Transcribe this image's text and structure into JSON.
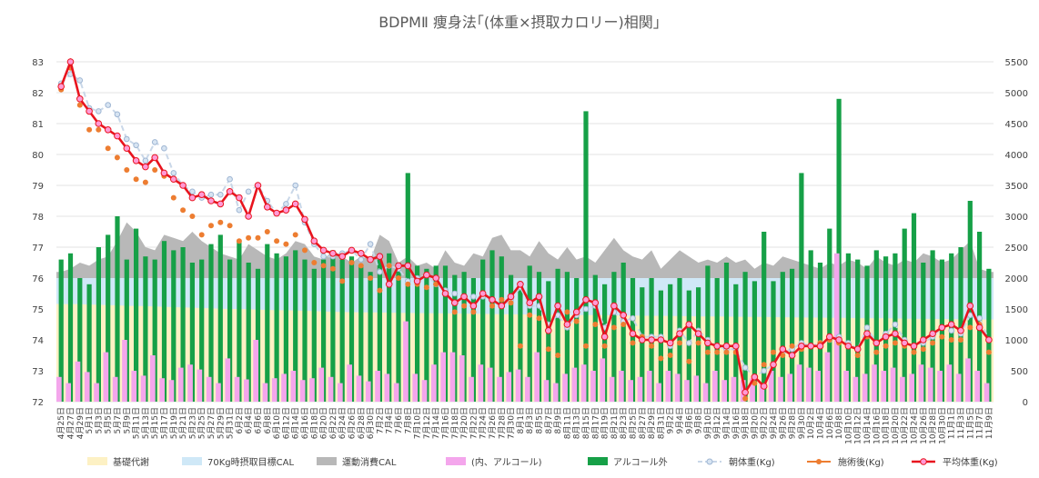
{
  "chart_data": {
    "type": "combo",
    "title": "BDPMⅡ 痩身法｢(体重×摂取カロリー)相関｣",
    "left_axis": {
      "min": 72,
      "max": 83,
      "ticks": [
        "83",
        "82",
        "81",
        "80",
        "79",
        "78",
        "77",
        "76",
        "75",
        "74",
        "73",
        "72"
      ]
    },
    "right_axis": {
      "min": 0,
      "max": 5500,
      "ticks": [
        "5500",
        "5000",
        "4500",
        "4000",
        "3500",
        "3000",
        "2500",
        "2000",
        "1500",
        "1000",
        "500",
        "0"
      ]
    },
    "x_dates": [
      "4月25日",
      "4月27日",
      "4月29日",
      "5月1日",
      "5月3日",
      "5月5日",
      "5月7日",
      "5月9日",
      "5月11日",
      "5月13日",
      "5月15日",
      "5月17日",
      "5月19日",
      "5月21日",
      "5月23日",
      "5月25日",
      "5月27日",
      "5月29日",
      "5月31日",
      "6月2日",
      "6月4日",
      "6月6日",
      "6月8日",
      "6月10日",
      "6月12日",
      "6月14日",
      "6月16日",
      "6月18日",
      "6月20日",
      "6月22日",
      "6月24日",
      "6月26日",
      "6月28日",
      "6月30日",
      "7月2日",
      "7月4日",
      "7月6日",
      "7月8日",
      "7月10日",
      "7月12日",
      "7月14日",
      "7月16日",
      "7月18日",
      "7月20日",
      "7月22日",
      "7月24日",
      "7月26日",
      "7月28日",
      "7月30日",
      "8月1日",
      "8月3日",
      "8月5日",
      "8月7日",
      "8月9日",
      "8月11日",
      "8月13日",
      "8月15日",
      "8月17日",
      "8月19日",
      "8月21日",
      "8月23日",
      "8月25日",
      "8月27日",
      "8月29日",
      "8月31日",
      "9月2日",
      "9月4日",
      "9月6日",
      "9月8日",
      "9月10日",
      "9月12日",
      "9月14日",
      "9月16日",
      "9月18日",
      "9月20日",
      "9月22日",
      "9月24日",
      "9月26日",
      "9月28日",
      "9月30日",
      "10月2日",
      "10月4日",
      "10月6日",
      "10月8日",
      "10月10日",
      "10月12日",
      "10月14日",
      "10月16日",
      "10月18日",
      "10月20日",
      "10月22日",
      "10月24日",
      "10月26日",
      "10月28日",
      "10月30日",
      "11月1日",
      "11月3日",
      "11月5日",
      "11月7日",
      "11月9日"
    ],
    "legend": [
      {
        "label": "基礎代謝",
        "color": "#fdf1c4",
        "kind": "area"
      },
      {
        "label": "70Kg時摂取目標CAL",
        "color": "#cfe8f7",
        "kind": "area"
      },
      {
        "label": "運動消費CAL",
        "color": "#b8b8b8",
        "kind": "area"
      },
      {
        "label": "(内、アルコール)",
        "color": "#f4a6ec",
        "kind": "bar"
      },
      {
        "label": "アルコール外",
        "color": "#16a047",
        "kind": "bar"
      },
      {
        "label": "朝体重(Kg)",
        "color": "#c9d7e8",
        "kind": "dash-line"
      },
      {
        "label": "施術後(Kg)",
        "color": "#ed7d31",
        "kind": "line-dot"
      },
      {
        "label": "平均体重(Kg)",
        "color": "#e8141e",
        "kind": "line-marker"
      }
    ],
    "series": [
      {
        "name": "基礎代謝",
        "axis": "right",
        "values": [
          1580,
          1580,
          1580,
          1570,
          1570,
          1560,
          1560,
          1550,
          1550,
          1545,
          1540,
          1535,
          1530,
          1525,
          1520,
          1515,
          1510,
          1505,
          1500,
          1500,
          1495,
          1490,
          1485,
          1480,
          1480,
          1475,
          1470,
          1465,
          1460,
          1455,
          1450,
          1448,
          1446,
          1444,
          1442,
          1440,
          1438,
          1436,
          1434,
          1432,
          1430,
          1428,
          1426,
          1424,
          1422,
          1420,
          1418,
          1416,
          1414,
          1412,
          1410,
          1408,
          1406,
          1404,
          1402,
          1400,
          1400,
          1400,
          1398,
          1396,
          1394,
          1392,
          1390,
          1390,
          1388,
          1386,
          1384,
          1382,
          1380,
          1380,
          1378,
          1376,
          1374,
          1372,
          1370,
          1370,
          1368,
          1366,
          1364,
          1362,
          1360,
          1360,
          1358,
          1356,
          1354,
          1352,
          1350,
          1350,
          1348,
          1346,
          1344,
          1342,
          1340,
          1340,
          1338,
          1336,
          1334,
          1332,
          1330,
          1330
        ]
      },
      {
        "name": "70Kg時摂取目標CAL",
        "axis": "right",
        "values": [
          2000,
          2000,
          2000,
          2000,
          2000,
          2000,
          2000,
          2000,
          2000,
          2000,
          2000,
          2000,
          2000,
          2000,
          2000,
          2000,
          2000,
          2000,
          2000,
          2000,
          2000,
          2000,
          2000,
          2000,
          2000,
          2000,
          2000,
          2000,
          2000,
          2000,
          2000,
          2000,
          2000,
          2000,
          2000,
          2000,
          2000,
          2000,
          2000,
          2000,
          2000,
          2000,
          2000,
          2000,
          2000,
          2000,
          2000,
          2000,
          2000,
          2000,
          2000,
          2000,
          2000,
          2000,
          2000,
          2000,
          2000,
          2000,
          2000,
          2000,
          2000,
          2000,
          2000,
          2000,
          2000,
          2000,
          2000,
          2000,
          2000,
          2000,
          2000,
          2000,
          2000,
          2000,
          2000,
          2000,
          2000,
          2000,
          2000,
          2000,
          2000,
          2000,
          2000,
          2000,
          2000,
          2000,
          2000,
          2000,
          2000,
          2000,
          2000,
          2000,
          2000,
          2000,
          2000,
          2000,
          2000,
          2000,
          2000,
          2000
        ]
      },
      {
        "name": "運動消費CAL",
        "axis": "right",
        "values": [
          2100,
          2150,
          2250,
          2200,
          2300,
          2350,
          2600,
          2900,
          2750,
          2500,
          2450,
          2700,
          2650,
          2600,
          2750,
          2600,
          2500,
          2400,
          2350,
          2300,
          2550,
          2450,
          2350,
          2300,
          2400,
          2600,
          2550,
          2350,
          2300,
          2450,
          2350,
          2250,
          2350,
          2300,
          2700,
          2600,
          2250,
          2350,
          2200,
          2250,
          2150,
          2450,
          2250,
          2200,
          2400,
          2350,
          2650,
          2700,
          2450,
          2450,
          2350,
          2600,
          2400,
          2300,
          2500,
          2300,
          2350,
          2250,
          2450,
          2650,
          2450,
          2350,
          2300,
          2450,
          2150,
          2300,
          2450,
          2350,
          2250,
          2300,
          2250,
          2350,
          2250,
          2300,
          2150,
          2250,
          2200,
          2350,
          2300,
          2250,
          2200,
          2150,
          2250,
          2200,
          2300,
          2250,
          2150,
          2350,
          2250,
          2200,
          2300,
          2250,
          2400,
          2350,
          2250,
          2300,
          2450,
          2600,
          2150,
          2100
        ]
      },
      {
        "name": "アルコール外",
        "axis": "right",
        "values": [
          2300,
          2400,
          2000,
          1900,
          2500,
          2700,
          3000,
          2300,
          2800,
          2350,
          2300,
          2600,
          2450,
          2500,
          2250,
          2300,
          2550,
          2700,
          2300,
          2600,
          2250,
          2150,
          2550,
          2400,
          2350,
          2450,
          2300,
          2150,
          2300,
          2450,
          2300,
          2350,
          2200,
          2100,
          2300,
          2400,
          2250,
          3700,
          2200,
          2150,
          2200,
          2200,
          2050,
          2100,
          2000,
          2300,
          2450,
          2350,
          2050,
          1900,
          2200,
          2100,
          1950,
          2150,
          2100,
          2000,
          4700,
          2050,
          1900,
          2100,
          2250,
          2000,
          1850,
          2000,
          1800,
          1900,
          2000,
          1800,
          1850,
          2200,
          2000,
          2250,
          1900,
          2100,
          1950,
          2750,
          1950,
          2100,
          2150,
          3700,
          2450,
          2250,
          2800,
          4900,
          2400,
          2300,
          2200,
          2450,
          2350,
          2400,
          2800,
          3050,
          2250,
          2450,
          2300,
          2400,
          2500,
          3250,
          2750,
          2150
        ]
      },
      {
        "name": "(内、アルコール)",
        "axis": "right",
        "values": [
          400,
          300,
          650,
          480,
          300,
          800,
          400,
          1000,
          500,
          420,
          750,
          380,
          350,
          550,
          600,
          520,
          400,
          300,
          700,
          400,
          360,
          1000,
          300,
          380,
          450,
          500,
          350,
          380,
          550,
          400,
          300,
          600,
          420,
          330,
          500,
          450,
          300,
          1300,
          450,
          350,
          600,
          800,
          800,
          750,
          400,
          600,
          550,
          400,
          480,
          520,
          400,
          800,
          350,
          300,
          450,
          550,
          600,
          500,
          700,
          400,
          500,
          350,
          400,
          500,
          300,
          500,
          450,
          350,
          420,
          300,
          500,
          350,
          400,
          350,
          380,
          300,
          500,
          400,
          450,
          600,
          550,
          500,
          800,
          2400,
          500,
          400,
          450,
          600,
          500,
          550,
          400,
          450,
          600,
          550,
          500,
          600,
          450,
          700,
          500,
          300
        ]
      },
      {
        "name": "朝体重(Kg)",
        "axis": "left",
        "values": [
          82.3,
          82.6,
          82.4,
          81.5,
          81.4,
          81.6,
          81.3,
          80.5,
          80.3,
          79.8,
          80.4,
          80.2,
          79.4,
          79.0,
          78.8,
          78.6,
          78.7,
          78.7,
          79.2,
          78.2,
          78.8,
          79.0,
          78.5,
          78.1,
          78.4,
          79.0,
          77.8,
          77.1,
          76.7,
          76.7,
          76.8,
          76.9,
          76.6,
          77.1,
          76.2,
          76.4,
          76.3,
          75.9,
          76.0,
          76.1,
          75.8,
          75.6,
          75.5,
          75.4,
          75.4,
          75.4,
          75.3,
          75.1,
          75.3,
          75.7,
          75.1,
          75.1,
          74.5,
          74.8,
          74.4,
          74.8,
          75.0,
          75.1,
          74.4,
          74.9,
          74.6,
          74.7,
          74.1,
          74.1,
          74.1,
          73.8,
          74.3,
          73.9,
          74.3,
          74.0,
          73.8,
          73.7,
          73.7,
          73.1,
          72.8,
          73.0,
          73.2,
          73.6,
          73.7,
          73.9,
          73.8,
          73.9,
          74.0,
          74.1,
          73.9,
          73.7,
          74.4,
          73.9,
          74.2,
          74.5,
          74.0,
          73.8,
          73.9,
          74.1,
          74.4,
          74.3,
          74.2,
          74.8,
          74.7,
          74.0
        ]
      },
      {
        "name": "施術後(Kg)",
        "axis": "left",
        "values": [
          82.1,
          82.8,
          81.6,
          80.8,
          80.8,
          80.2,
          79.9,
          79.5,
          79.2,
          79.1,
          79.5,
          79.3,
          78.6,
          78.2,
          78.0,
          77.4,
          77.7,
          77.8,
          77.7,
          77.2,
          77.3,
          77.3,
          77.5,
          77.2,
          77.1,
          77.4,
          76.9,
          76.5,
          76.4,
          76.3,
          75.9,
          76.5,
          76.4,
          76.0,
          75.6,
          76.4,
          76.0,
          75.8,
          75.8,
          75.7,
          75.8,
          75.5,
          74.9,
          75.1,
          74.9,
          75.5,
          75.1,
          75.3,
          75.2,
          73.8,
          74.8,
          74.7,
          73.7,
          73.5,
          74.9,
          74.6,
          73.8,
          74.5,
          73.8,
          74.4,
          74.5,
          73.9,
          74.1,
          73.8,
          73.4,
          73.5,
          73.9,
          73.3,
          73.9,
          73.6,
          73.6,
          73.6,
          73.6,
          72.1,
          72.6,
          73.2,
          73.6,
          73.5,
          73.8,
          73.7,
          73.8,
          73.9,
          74.0,
          73.9,
          73.8,
          73.5,
          74.1,
          73.6,
          73.8,
          73.9,
          73.8,
          73.6,
          73.7,
          73.9,
          74.1,
          74.0,
          74.0,
          74.4,
          74.5,
          73.6
        ]
      },
      {
        "name": "平均体重(Kg)",
        "axis": "left",
        "values": [
          82.2,
          83.0,
          81.8,
          81.4,
          81.0,
          80.8,
          80.6,
          80.2,
          79.8,
          79.6,
          79.9,
          79.4,
          79.2,
          79.0,
          78.6,
          78.7,
          78.5,
          78.4,
          78.8,
          78.6,
          78.0,
          79.0,
          78.3,
          78.1,
          78.2,
          78.4,
          77.9,
          77.2,
          76.9,
          76.8,
          76.7,
          76.9,
          76.8,
          76.6,
          76.7,
          75.8,
          76.4,
          76.4,
          75.9,
          76.1,
          76.0,
          75.5,
          75.2,
          75.4,
          75.1,
          75.5,
          75.3,
          75.1,
          75.4,
          75.8,
          75.2,
          75.4,
          74.3,
          75.1,
          74.5,
          74.9,
          75.3,
          75.2,
          74.1,
          75.1,
          74.8,
          74.2,
          74.0,
          74.0,
          74.0,
          73.9,
          74.2,
          74.5,
          74.2,
          73.9,
          73.8,
          73.8,
          73.8,
          72.3,
          72.8,
          72.5,
          73.2,
          73.7,
          73.5,
          73.8,
          73.8,
          73.8,
          74.1,
          74.0,
          73.8,
          73.7,
          74.2,
          73.9,
          74.1,
          74.2,
          73.9,
          73.8,
          74.0,
          74.2,
          74.4,
          74.5,
          74.3,
          75.1,
          74.4,
          74.0
        ]
      }
    ]
  }
}
